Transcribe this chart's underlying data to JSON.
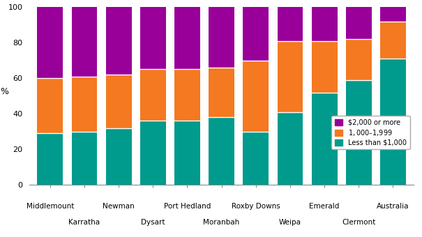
{
  "categories": [
    "Middlemount",
    "Karratha",
    "Newman",
    "Dysart",
    "Port Hedland",
    "Moranbah",
    "Roxby Downs",
    "Weipa",
    "Emerald",
    "Clermont",
    "Australia"
  ],
  "less_than_1k": [
    29,
    30,
    32,
    36,
    36,
    38,
    30,
    41,
    52,
    59,
    71
  ],
  "1k_to_1999": [
    31,
    31,
    30,
    29,
    29,
    28,
    40,
    40,
    29,
    23,
    21
  ],
  "2k_plus": [
    40,
    39,
    38,
    35,
    35,
    34,
    30,
    19,
    19,
    18,
    8
  ],
  "color_less_1k": "#009B8D",
  "color_1k_1999": "#F47920",
  "color_2k_plus": "#990099",
  "ylabel": "%",
  "ylim": [
    0,
    100
  ],
  "yticks": [
    0,
    20,
    40,
    60,
    80,
    100
  ],
  "legend_labels": [
    "$2,000 or more",
    "$1,000–$1,999",
    "Less than $1,000"
  ],
  "grid_color": "white",
  "background_color": "white",
  "title": ""
}
